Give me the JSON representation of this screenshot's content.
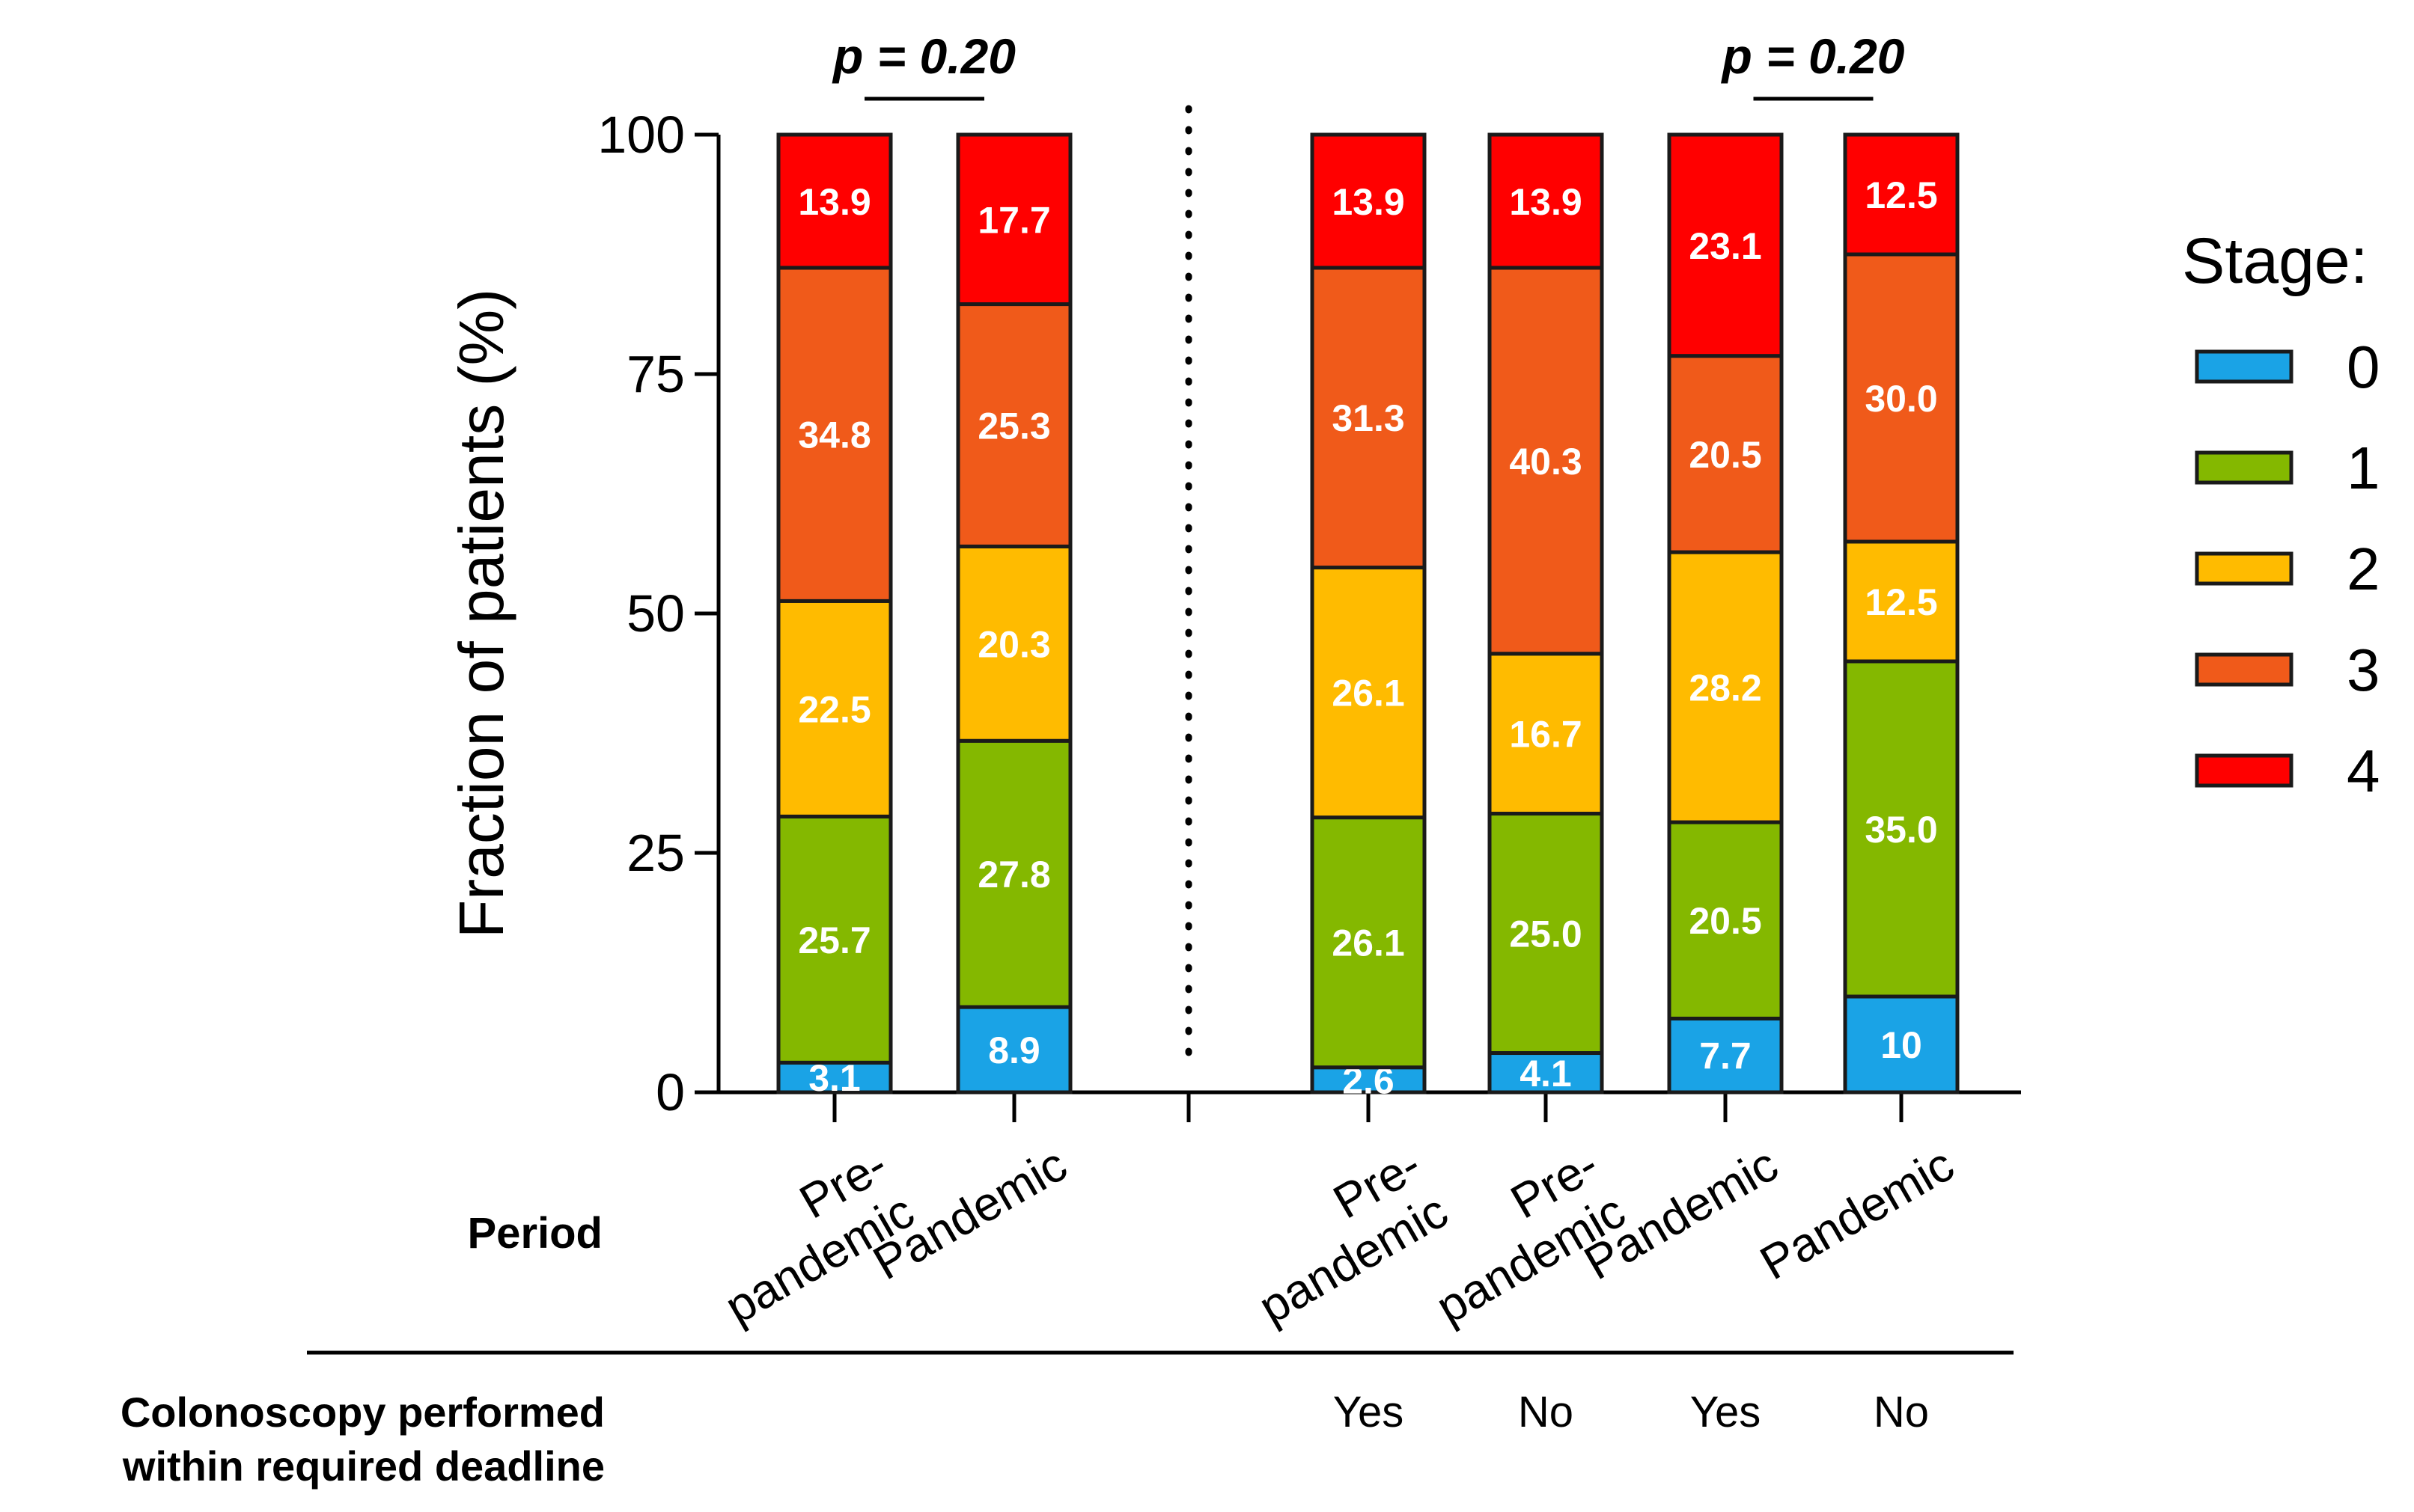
{
  "chart_data": {
    "type": "bar",
    "stacked": true,
    "ylabel": "Fraction of patients (%)",
    "ylim": [
      0,
      100
    ],
    "yticks": [
      0,
      25,
      50,
      75,
      100
    ],
    "grid": false,
    "legend": {
      "title": "Stage:",
      "placement": "right",
      "entries": [
        "0",
        "1",
        "2",
        "3",
        "4"
      ]
    },
    "colors": [
      "#1aa3e6",
      "#84b800",
      "#ffbb00",
      "#f05a1a",
      "#ff0000"
    ],
    "categories": [
      "Pre-pandemic",
      "Pandemic",
      "Pre-pandemic",
      "Pre-pandemic",
      "Pandemic",
      "Pandemic"
    ],
    "category_label_lines": [
      [
        "Pre-",
        "pandemic"
      ],
      [
        "Pandemic"
      ],
      [
        "Pre-",
        "pandemic"
      ],
      [
        "Pre-",
        "pandemic"
      ],
      [
        "Pandemic"
      ],
      [
        "Pandemic"
      ]
    ],
    "series": [
      {
        "name": "0",
        "values": [
          3.1,
          8.9,
          2.6,
          4.1,
          7.7,
          10.0
        ],
        "labels": [
          "3.1",
          "8.9",
          "2.6",
          "4.1",
          "7.7",
          "10"
        ]
      },
      {
        "name": "1",
        "values": [
          25.7,
          27.8,
          26.1,
          25.0,
          20.5,
          35.0
        ],
        "labels": [
          "25.7",
          "27.8",
          "26.1",
          "25.0",
          "20.5",
          "35.0"
        ]
      },
      {
        "name": "2",
        "values": [
          22.5,
          20.3,
          26.1,
          16.7,
          28.2,
          12.5
        ],
        "labels": [
          "22.5",
          "20.3",
          "26.1",
          "16.7",
          "28.2",
          "12.5"
        ]
      },
      {
        "name": "3",
        "values": [
          34.8,
          25.3,
          31.3,
          40.3,
          20.5,
          30.0
        ],
        "labels": [
          "34.8",
          "25.3",
          "31.3",
          "40.3",
          "20.5",
          "30.0"
        ]
      },
      {
        "name": "4",
        "values": [
          13.9,
          17.7,
          13.9,
          13.9,
          23.1,
          12.5
        ],
        "labels": [
          "13.9",
          "17.7",
          "13.9",
          "13.9",
          "23.1",
          "12.5"
        ]
      }
    ],
    "period_row_label": "Period",
    "deadline_row_label_lines": [
      "Colonoscopy performed",
      "within required deadline"
    ],
    "deadline_values": [
      "",
      "",
      "Yes",
      "No",
      "Yes",
      "No"
    ],
    "annotations": [
      {
        "text": "p = 0.20",
        "between": [
          0,
          1
        ]
      },
      {
        "text": "p = 0.20",
        "between": [
          4,
          5
        ]
      }
    ]
  }
}
